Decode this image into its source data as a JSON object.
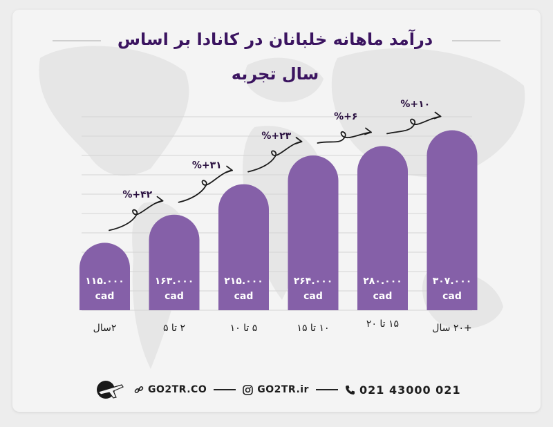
{
  "title": {
    "line1": "درآمد ماهانه خلبانان در کانادا بر اساس",
    "line2": "سال تجربه"
  },
  "chart_data": {
    "type": "bar",
    "title": "درآمد ماهانه خلبانان در کانادا بر اساس سال تجربه",
    "categories": [
      "۲سال",
      "۲ تا ۵",
      "۵ تا ۱۰",
      "۱۰ تا ۱۵",
      "۱۵ تا ۲۰",
      "+۲۰ سال"
    ],
    "values": [
      115000,
      163000,
      215000,
      264000,
      280000,
      307000
    ],
    "value_labels": [
      "۱۱۵.۰۰۰",
      "۱۶۳.۰۰۰",
      "۲۱۵.۰۰۰",
      "۲۶۴.۰۰۰",
      "۲۸۰.۰۰۰",
      "۳۰۷.۰۰۰"
    ],
    "unit": "cad",
    "growth_labels": [
      "%+۴۲",
      "%+۳۱",
      "%+۲۳",
      "%+۶",
      "%+۱۰"
    ],
    "ylim": [
      0,
      330000
    ],
    "grid": true,
    "bar_color": "#8560a8",
    "arrow_color": "#1a1a1a"
  },
  "footer": {
    "website": "GO2TR.CO",
    "instagram": "GO2TR.ir",
    "phone": "021 43000 021",
    "link_icon": "link-icon",
    "instagram_icon": "instagram-icon",
    "phone_icon": "phone-icon",
    "logo_icon": "airplane-logo-icon"
  },
  "colors": {
    "title": "#3b1460",
    "background": "#f4f4f4",
    "map": "#e6e6e6"
  }
}
